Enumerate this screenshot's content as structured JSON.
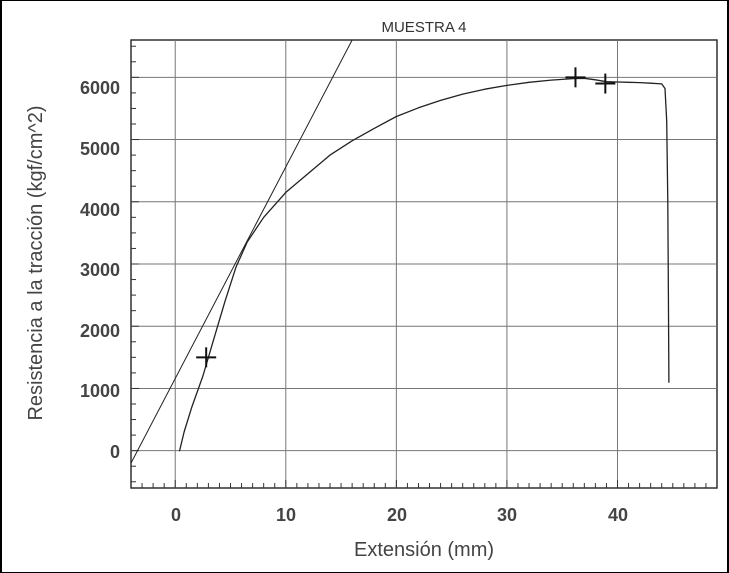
{
  "chart_data": {
    "type": "line",
    "title": "MUESTRA 4",
    "xlabel": "Extensión (mm)",
    "ylabel": "Resistencia a la tracción (kgf/cm^2)",
    "xlim": [
      -4,
      49
    ],
    "ylim": [
      -600,
      6600
    ],
    "x_ticks": [
      0,
      10,
      20,
      30,
      40
    ],
    "x_tick_labels": [
      "0",
      "10",
      "20",
      "30",
      "40"
    ],
    "y_ticks": [
      0,
      1000,
      2000,
      3000,
      4000,
      5000,
      6000
    ],
    "y_tick_labels": [
      "0",
      "1000",
      "2000",
      "3000",
      "4000",
      "5000",
      "6000"
    ],
    "grid": true,
    "series": [
      {
        "x": [
          0.4,
          0.8,
          1.5,
          2.5,
          3.5,
          4.5,
          5.5,
          6.5,
          8,
          10,
          12,
          14,
          16,
          18,
          20,
          22,
          24,
          26,
          28,
          30,
          32,
          34,
          36,
          37,
          38,
          39,
          40,
          41,
          42,
          43,
          44,
          44.3,
          44.45,
          44.55,
          44.6,
          44.65
        ],
        "y": [
          0,
          300,
          700,
          1200,
          1800,
          2400,
          2950,
          3350,
          3750,
          4150,
          4450,
          4750,
          4980,
          5180,
          5370,
          5510,
          5630,
          5730,
          5810,
          5870,
          5920,
          5955,
          5980,
          5985,
          5960,
          5930,
          5925,
          5920,
          5915,
          5905,
          5895,
          5820,
          5300,
          4000,
          2500,
          1100
        ]
      },
      {
        "x": [
          -4,
          16
        ],
        "y": [
          -200,
          6600
        ]
      }
    ],
    "markers": [
      {
        "x": 2.8,
        "y": 1500
      },
      {
        "x": 36.2,
        "y": 6000
      },
      {
        "x": 38.9,
        "y": 5900
      }
    ]
  }
}
